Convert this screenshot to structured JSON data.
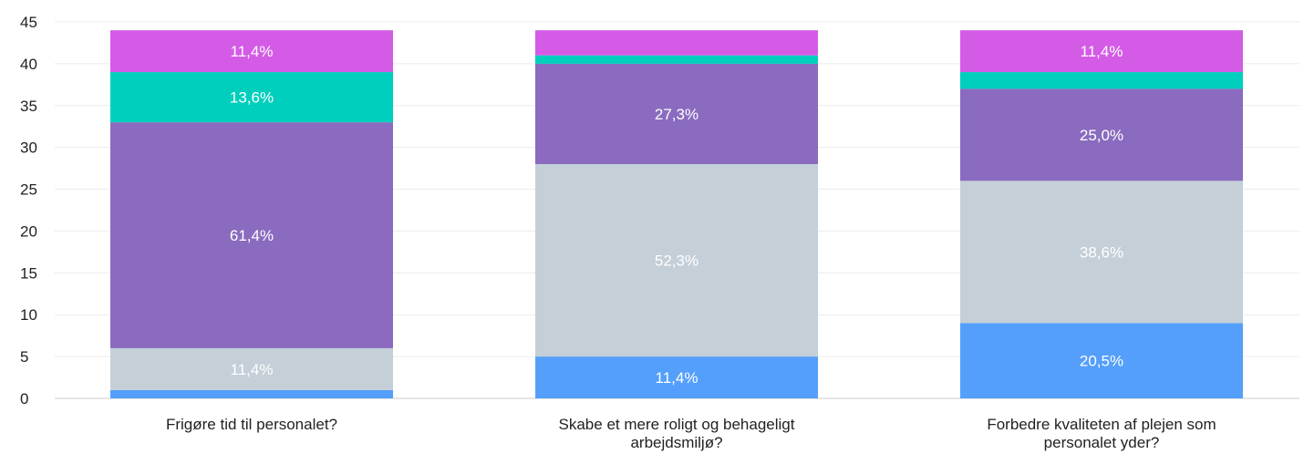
{
  "chart_data": {
    "type": "bar",
    "stacked": true,
    "categories": [
      [
        "Frigøre tid til personalet?"
      ],
      [
        "Skabe et mere roligt og behageligt",
        "arbejdsmiljø?"
      ],
      [
        "Forbedre kvaliteten af plejen som",
        "personalet yder?"
      ]
    ],
    "ylim": [
      0,
      45
    ],
    "yticks": [
      0,
      5,
      10,
      15,
      20,
      25,
      30,
      35,
      40,
      45
    ],
    "grid": true,
    "legend": "none",
    "series": [
      {
        "color": "#549ffb",
        "values": [
          1,
          5,
          9
        ],
        "labels": [
          "",
          "11,4%",
          "20,5%"
        ]
      },
      {
        "color": "#c4cfd8",
        "values": [
          5,
          23,
          17
        ],
        "labels": [
          "11,4%",
          "52,3%",
          "38,6%"
        ]
      },
      {
        "color": "#8a6bbf",
        "values": [
          27,
          12,
          11
        ],
        "labels": [
          "61,4%",
          "27,3%",
          "25,0%"
        ]
      },
      {
        "color": "#00cfbd",
        "values": [
          6,
          1,
          2
        ],
        "labels": [
          "13,6%",
          "",
          ""
        ]
      },
      {
        "color": "#d45be6",
        "values": [
          5,
          3,
          5
        ],
        "labels": [
          "11,4%",
          "",
          "11,4%"
        ]
      }
    ]
  }
}
